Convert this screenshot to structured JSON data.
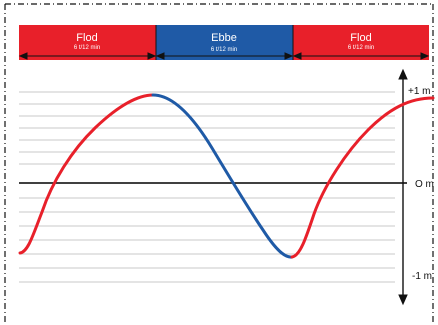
{
  "phases": [
    {
      "label": "Flod",
      "duration": "6 t/12 min",
      "color": "#e8202a"
    },
    {
      "label": "Ebbe",
      "duration": "6 t/12 min",
      "color": "#1f5aa6"
    },
    {
      "label": "Flod",
      "duration": "6 t/12 min",
      "color": "#e8202a"
    }
  ],
  "scale": {
    "top": "+1 m",
    "middle": "O m",
    "bottom": "-1 m"
  },
  "colors": {
    "rising": "#e8202a",
    "falling": "#1f5aa6",
    "grid": "#c8c8c8",
    "axis": "#000000"
  }
}
